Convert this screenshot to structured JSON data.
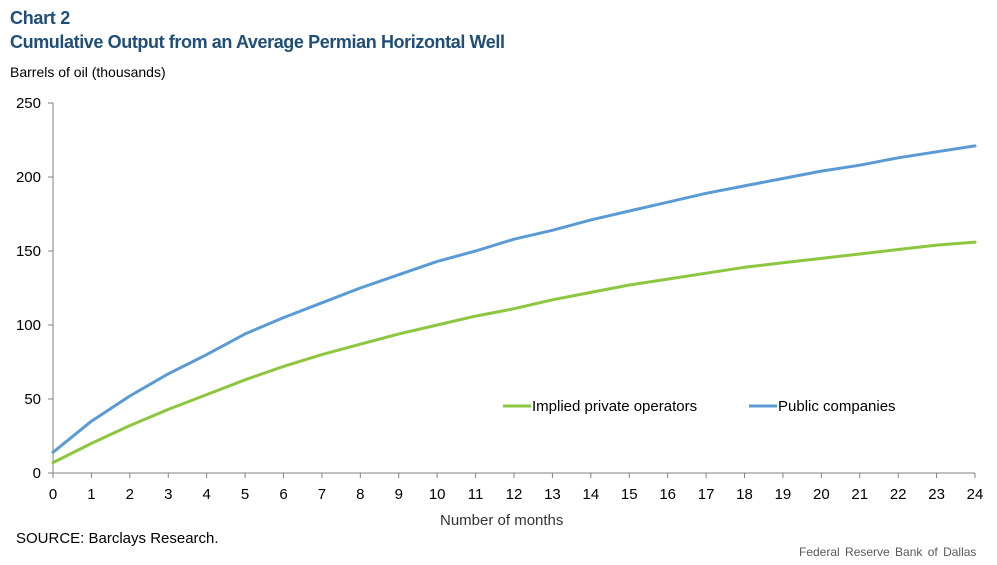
{
  "header": {
    "chart_number": "Chart 2",
    "title": "Cumulative Output from an Average Permian Horizontal Well",
    "y_unit": "Barrels of oil (thousands)"
  },
  "footer": {
    "source": "SOURCE: Barclays Research.",
    "credit": "Federal Reserve Bank of Dallas"
  },
  "chart_data": {
    "type": "line",
    "title": "Cumulative Output from an Average Permian Horizontal Well",
    "xlabel": "Number of months",
    "ylabel": "Barrels of oil (thousands)",
    "x": [
      0,
      1,
      2,
      3,
      4,
      5,
      6,
      7,
      8,
      9,
      10,
      11,
      12,
      13,
      14,
      15,
      16,
      17,
      18,
      19,
      20,
      21,
      22,
      23,
      24
    ],
    "xlim": [
      0,
      24
    ],
    "ylim": [
      0,
      250
    ],
    "yticks": [
      0,
      50,
      100,
      150,
      200,
      250
    ],
    "grid": false,
    "legend_position": "lower-right",
    "series": [
      {
        "name": "Implied private operators",
        "color": "#8dc63f",
        "values": [
          7,
          20,
          32,
          43,
          53,
          63,
          72,
          80,
          87,
          94,
          100,
          106,
          111,
          117,
          122,
          127,
          131,
          135,
          139,
          142,
          145,
          148,
          151,
          154,
          156
        ]
      },
      {
        "name": "Public companies",
        "color": "#5b9bd5",
        "values": [
          14,
          35,
          52,
          67,
          80,
          94,
          105,
          115,
          125,
          134,
          143,
          150,
          158,
          164,
          171,
          177,
          183,
          189,
          194,
          199,
          204,
          208,
          213,
          217,
          221
        ]
      }
    ]
  }
}
